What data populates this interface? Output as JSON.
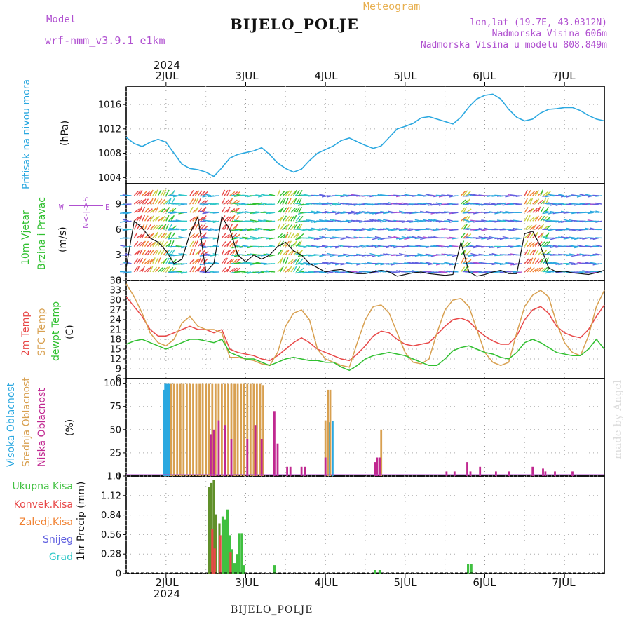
{
  "header": {
    "model_label": "Model",
    "model_name": "wrf-nmm_v3.9.1 e1km",
    "meteogram_label": "Meteogram",
    "station_title": "BIJELO_POLJE",
    "lonlat": "lon,lat (19.7E, 43.0312N)",
    "altitude": "Nadmorska Visina 606m",
    "model_altitude": "Nadmorska Visina u modelu 808.849m"
  },
  "footer": {
    "station": "BIJELO_POLJE",
    "credit": "made by Angel"
  },
  "colors": {
    "pressure": "#2ba8e0",
    "temp": "#e84848",
    "sfc": "#d8a050",
    "dewpt": "#30c030",
    "high_cloud": "#2ba8e0",
    "mid_cloud": "#d8a050",
    "low_cloud": "#c02890",
    "total_precip": "#40c040",
    "conv_precip": "#e84848",
    "frozen_precip": "#f08030",
    "snow": "#6060e0",
    "hail": "#30c8c8",
    "purple": "#b050d0"
  },
  "chart_data": [
    {
      "type": "line",
      "panel": "pressure",
      "ylabel_1": "Pritisak na nivou mora",
      "ylabel_2": "(hPa)",
      "ylim": [
        1003,
        1019
      ],
      "yticks": [
        1004,
        1008,
        1012,
        1016
      ],
      "x_days": [
        1.5,
        1.6,
        1.7,
        1.8,
        1.9,
        2.0,
        2.1,
        2.2,
        2.3,
        2.4,
        2.5,
        2.6,
        2.7,
        2.8,
        2.9,
        3.0,
        3.1,
        3.2,
        3.3,
        3.4,
        3.5,
        3.6,
        3.7,
        3.8,
        3.9,
        4.0,
        4.1,
        4.2,
        4.3,
        4.4,
        4.5,
        4.6,
        4.7,
        4.8,
        4.9,
        5.0,
        5.1,
        5.2,
        5.3,
        5.4,
        5.5,
        5.6,
        5.7,
        5.8,
        5.9,
        6.0,
        6.1,
        6.2,
        6.3,
        6.4,
        6.5,
        6.6,
        6.7,
        6.8,
        6.9,
        7.0,
        7.1,
        7.2,
        7.3,
        7.4,
        7.5
      ],
      "series": [
        {
          "values": [
            1010.6,
            1009.6,
            1009.1,
            1009.8,
            1010.3,
            1009.8,
            1008.0,
            1006.2,
            1005.5,
            1005.3,
            1004.9,
            1004.2,
            1005.6,
            1007.2,
            1007.8,
            1008.1,
            1008.4,
            1008.9,
            1007.8,
            1006.4,
            1005.5,
            1004.9,
            1005.4,
            1006.8,
            1008.0,
            1008.6,
            1009.2,
            1010.1,
            1010.5,
            1009.9,
            1009.3,
            1008.8,
            1009.2,
            1010.6,
            1012.0,
            1012.4,
            1012.9,
            1013.8,
            1014.0,
            1013.6,
            1013.2,
            1012.8,
            1013.9,
            1015.6,
            1016.9,
            1017.5,
            1017.7,
            1016.9,
            1015.2,
            1013.9,
            1013.3,
            1013.6,
            1014.6,
            1015.2,
            1015.3,
            1015.5,
            1015.5,
            1015.0,
            1014.2,
            1013.6,
            1013.3
          ]
        }
      ],
      "xticks": [
        "2JUL",
        "3JUL",
        "4JUL",
        "5JUL",
        "6JUL",
        "7JUL"
      ],
      "xtick_days": [
        2,
        3,
        4,
        5,
        6,
        7
      ],
      "year": "2024"
    },
    {
      "type": "line",
      "panel": "wind",
      "ylabel_1": "10m Vjetar",
      "ylabel_2": "Brzina i Pravac",
      "ylabel_3": "(m/s)",
      "compass_ns": "N<-|->S",
      "compass_w": "W",
      "compass_e": "E",
      "ylim": [
        0,
        11.4
      ],
      "yticks": [
        0,
        3,
        6,
        9
      ],
      "x_days": [
        1.5,
        1.6,
        1.7,
        1.8,
        1.9,
        2.0,
        2.1,
        2.2,
        2.3,
        2.4,
        2.5,
        2.6,
        2.7,
        2.8,
        2.9,
        3.0,
        3.1,
        3.2,
        3.3,
        3.4,
        3.5,
        3.6,
        3.7,
        3.8,
        3.9,
        4.0,
        4.1,
        4.2,
        4.3,
        4.4,
        4.5,
        4.6,
        4.7,
        4.8,
        4.9,
        5.0,
        5.1,
        5.2,
        5.3,
        5.4,
        5.5,
        5.6,
        5.7,
        5.8,
        5.9,
        6.0,
        6.1,
        6.2,
        6.3,
        6.4,
        6.5,
        6.6,
        6.7,
        6.8,
        6.9,
        7.0,
        7.1,
        7.2,
        7.3,
        7.4,
        7.5
      ],
      "series": [
        {
          "name": "speed",
          "values": [
            1.5,
            7.0,
            6.2,
            5.0,
            4.5,
            3.5,
            2.0,
            2.5,
            5.5,
            7.5,
            1.0,
            2.0,
            7.5,
            6.0,
            3.0,
            2.2,
            3.0,
            2.5,
            3.0,
            4.0,
            4.5,
            3.5,
            3.0,
            2.0,
            1.5,
            1.0,
            1.2,
            1.3,
            1.0,
            0.8,
            0.8,
            1.0,
            1.2,
            1.0,
            0.5,
            0.7,
            0.9,
            1.0,
            0.8,
            0.7,
            0.6,
            0.7,
            4.5,
            1.0,
            0.5,
            0.7,
            1.0,
            1.2,
            0.8,
            0.8,
            5.5,
            5.8,
            4.0,
            1.5,
            1.0,
            1.1,
            0.9,
            0.8,
            0.7,
            0.9,
            1.2
          ]
        }
      ]
    },
    {
      "type": "line",
      "panel": "temperature",
      "ylabel_1": "2m Temp",
      "ylabel_2": "SFC Temp",
      "ylabel_3": "dewpt Temp",
      "ylabel_4": "(C)",
      "ylim": [
        6,
        36
      ],
      "yticks": [
        6,
        9,
        12,
        15,
        18,
        21,
        24,
        27,
        30,
        33,
        36
      ],
      "x_days": [
        1.5,
        1.6,
        1.7,
        1.8,
        1.9,
        2.0,
        2.1,
        2.2,
        2.3,
        2.4,
        2.5,
        2.6,
        2.7,
        2.8,
        2.9,
        3.0,
        3.1,
        3.2,
        3.3,
        3.4,
        3.5,
        3.6,
        3.7,
        3.8,
        3.9,
        4.0,
        4.1,
        4.2,
        4.3,
        4.4,
        4.5,
        4.6,
        4.7,
        4.8,
        4.9,
        5.0,
        5.1,
        5.2,
        5.3,
        5.4,
        5.5,
        5.6,
        5.7,
        5.8,
        5.9,
        6.0,
        6.1,
        6.2,
        6.3,
        6.4,
        6.5,
        6.6,
        6.7,
        6.8,
        6.9,
        7.0,
        7.1,
        7.2,
        7.3,
        7.4,
        7.5
      ],
      "series": [
        {
          "name": "2m Temp",
          "key": "temp",
          "values": [
            31,
            28,
            25,
            21,
            19,
            19,
            20,
            21,
            22,
            21,
            21,
            20,
            21,
            15,
            14,
            13.5,
            13,
            12,
            11.5,
            13,
            15,
            17,
            18.5,
            17,
            15,
            14,
            13,
            12,
            11.5,
            13.5,
            16,
            19,
            20.5,
            20,
            18,
            16.5,
            16,
            16.5,
            17,
            19.5,
            22,
            24,
            24.5,
            23.5,
            21,
            19,
            17.5,
            16.5,
            16.5,
            19,
            24,
            27,
            28,
            26,
            22,
            20,
            19,
            18.5,
            21,
            25,
            28.5
          ]
        },
        {
          "name": "SFC Temp",
          "key": "sfc",
          "values": [
            35,
            31,
            26,
            20,
            17,
            16,
            18,
            23,
            25,
            22,
            21,
            21,
            20,
            12.5,
            12.5,
            12,
            11.5,
            10.5,
            10,
            14,
            22,
            26,
            27,
            24,
            15,
            12,
            11,
            10,
            9.5,
            17,
            24,
            28,
            28.5,
            26,
            20,
            14,
            11,
            10.5,
            12,
            20,
            27,
            30,
            30.5,
            28,
            21,
            14,
            11,
            10,
            11,
            20,
            28,
            31.5,
            33,
            31,
            23,
            17,
            14,
            13,
            19,
            28,
            33
          ]
        },
        {
          "name": "dewpt Temp",
          "key": "dewpt",
          "values": [
            16.5,
            17.5,
            18,
            17,
            16,
            15,
            16,
            17,
            18,
            18,
            17.5,
            17,
            18,
            14,
            13,
            12,
            12,
            11,
            10,
            11,
            12,
            12.5,
            12,
            11.5,
            11.5,
            11,
            11,
            9.5,
            8.5,
            10,
            12,
            13,
            13.5,
            14,
            13.5,
            13,
            12,
            11,
            10,
            10,
            12,
            14.5,
            15.5,
            16,
            15,
            14,
            13.5,
            12.5,
            12,
            14,
            17,
            18,
            17,
            15.5,
            14,
            13.5,
            13,
            13,
            15,
            18,
            15
          ]
        }
      ]
    },
    {
      "type": "bar",
      "panel": "cloud",
      "ylabel_1": "Visoka Oblacnost",
      "ylabel_2": "Srednja Oblacnost",
      "ylabel_3": "Niska Oblacnost",
      "ylabel_4": "(%)",
      "ylim": [
        0,
        105
      ],
      "yticks": [
        0,
        25,
        50,
        75,
        100
      ],
      "series": [
        {
          "name": "Visoka Oblacnost",
          "key": "high_cloud",
          "x_days": [
            1.97,
            1.99,
            2.01,
            2.03,
            2.05,
            4.05,
            4.09
          ],
          "values": [
            93,
            100,
            100,
            100,
            100,
            58,
            59
          ]
        },
        {
          "name": "Srednja Oblacnost",
          "key": "mid_cloud",
          "x_days": [
            2.06,
            2.1,
            2.14,
            2.18,
            2.22,
            2.26,
            2.3,
            2.34,
            2.38,
            2.42,
            2.46,
            2.5,
            2.54,
            2.58,
            2.62,
            2.66,
            2.7,
            2.74,
            2.78,
            2.82,
            2.86,
            2.9,
            2.94,
            2.98,
            3.02,
            3.06,
            3.1,
            3.14,
            3.18,
            3.22,
            4.0,
            4.03,
            4.06,
            4.7
          ],
          "values": [
            100,
            100,
            100,
            100,
            100,
            100,
            100,
            100,
            100,
            100,
            100,
            100,
            100,
            100,
            100,
            100,
            100,
            100,
            100,
            100,
            100,
            100,
            100,
            100,
            100,
            100,
            100,
            100,
            100,
            98,
            60,
            93,
            93,
            50
          ]
        },
        {
          "name": "Niska Oblacnost",
          "key": "low_cloud",
          "x_days": [
            2.56,
            2.6,
            2.66,
            2.74,
            2.82,
            3.02,
            3.12,
            3.2,
            3.36,
            3.4,
            3.52,
            3.56,
            3.7,
            3.74,
            4.0,
            4.62,
            4.65,
            4.68,
            5.52,
            5.62,
            5.78,
            5.82,
            5.94,
            6.14,
            6.3,
            6.6,
            6.73,
            6.76,
            6.88,
            7.1
          ],
          "values": [
            45,
            50,
            60,
            55,
            40,
            40,
            55,
            40,
            70,
            35,
            10,
            10,
            10,
            10,
            20,
            15,
            20,
            20,
            5,
            5,
            15,
            5,
            10,
            5,
            5,
            10,
            8,
            5,
            5,
            5
          ]
        }
      ]
    },
    {
      "type": "bar",
      "panel": "precip",
      "ylabel_1": "1hr Precip (mm)",
      "ylim": [
        0,
        1.4
      ],
      "yticks": [
        0,
        0.28,
        0.56,
        0.84,
        1.12,
        1.4
      ],
      "legend": [
        "Ukupna Kisa",
        "Konvek.Kisa",
        "Zaledj.Kisa",
        "Snijeg",
        "Grad"
      ],
      "series": [
        {
          "name": "Ukupna Kisa",
          "key": "total_precip",
          "x_days": [
            2.54,
            2.57,
            2.6,
            2.63,
            2.67,
            2.71,
            2.74,
            2.77,
            2.8,
            2.83,
            2.86,
            2.89,
            2.92,
            2.95,
            2.98,
            3.36,
            4.62,
            4.68,
            5.79,
            5.83
          ],
          "values": [
            1.24,
            1.3,
            1.35,
            0.85,
            0.72,
            0.82,
            0.78,
            0.92,
            0.55,
            0.35,
            0.15,
            0.28,
            0.58,
            0.58,
            0.12,
            0.12,
            0.05,
            0.05,
            0.14,
            0.14
          ]
        },
        {
          "name": "Konvek.Kisa",
          "key": "conv_precip",
          "x_days": [
            2.58,
            2.61,
            2.68,
            2.81
          ],
          "values": [
            0.64,
            0.36,
            0.55,
            0.3
          ]
        }
      ]
    }
  ]
}
